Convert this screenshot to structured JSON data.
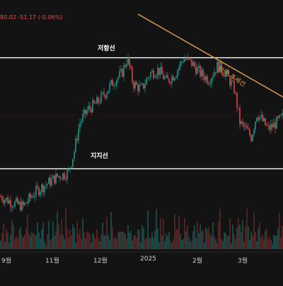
{
  "header": {
    "price_change": "80.02  -51.17 (-0.06%)"
  },
  "annotations": {
    "resistance_label": "저항선",
    "support_label": "지지선",
    "trend_label": "하락 추세선"
  },
  "colors": {
    "background": "#131313",
    "up": "#26a69a",
    "down": "#ef5350",
    "trendline": "#e0a25a",
    "level_line": "#ffffff",
    "axis_text": "#cfcfcf"
  },
  "chart_data": {
    "type": "candlestick",
    "title": "",
    "x_ticks": [
      "9월",
      "11월",
      "12월",
      "2025",
      "2월",
      "3월"
    ],
    "resistance_level": 0.78,
    "support_level": 0.22,
    "close_path": [
      [
        0,
        0.08
      ],
      [
        4,
        0.05
      ],
      [
        8,
        0.03
      ],
      [
        12,
        0.1
      ],
      [
        16,
        0.14
      ],
      [
        20,
        0.18
      ],
      [
        24,
        0.2
      ],
      [
        26,
        0.3
      ],
      [
        28,
        0.45
      ],
      [
        31,
        0.52
      ],
      [
        34,
        0.55
      ],
      [
        37,
        0.6
      ],
      [
        40,
        0.66
      ],
      [
        43,
        0.7
      ],
      [
        45,
        0.78
      ],
      [
        47,
        0.65
      ],
      [
        50,
        0.62
      ],
      [
        53,
        0.7
      ],
      [
        56,
        0.72
      ],
      [
        59,
        0.66
      ],
      [
        62,
        0.7
      ],
      [
        65,
        0.78
      ],
      [
        68,
        0.75
      ],
      [
        71,
        0.7
      ],
      [
        74,
        0.67
      ],
      [
        77,
        0.74
      ],
      [
        80,
        0.7
      ],
      [
        83,
        0.62
      ],
      [
        85,
        0.45
      ],
      [
        87,
        0.42
      ],
      [
        89,
        0.38
      ],
      [
        91,
        0.5
      ],
      [
        93,
        0.46
      ],
      [
        95,
        0.42
      ],
      [
        97,
        0.44
      ],
      [
        100,
        0.48
      ]
    ],
    "volume_levels": [
      0.25,
      0.4,
      0.6,
      0.35,
      0.5,
      0.7,
      0.3,
      0.45,
      0.8,
      0.55,
      0.4,
      0.65,
      0.35,
      0.5,
      0.9,
      0.45,
      0.3,
      0.6,
      0.4,
      0.75,
      0.5,
      0.35,
      0.55,
      0.7,
      0.45,
      0.3,
      0.6,
      0.85,
      0.4,
      0.5,
      0.65,
      0.35
    ]
  }
}
